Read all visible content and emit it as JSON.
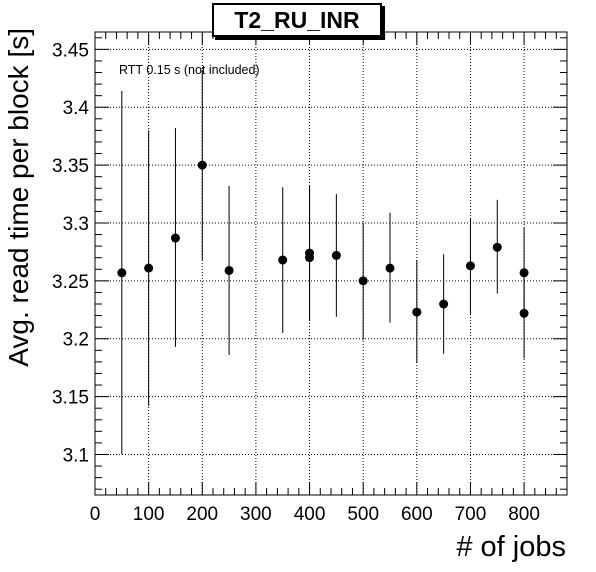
{
  "chart_data": {
    "type": "scatter",
    "title": "T2_RU_INR",
    "xlabel": "# of jobs",
    "ylabel": "Avg. read time per block [s]",
    "annotation": "RTT 0.15 s (not included)",
    "xlim": [
      0,
      880
    ],
    "ylim": [
      3.065,
      3.465
    ],
    "xticks": [
      0,
      100,
      200,
      300,
      400,
      500,
      600,
      700,
      800
    ],
    "yticks": [
      3.1,
      3.15,
      3.2,
      3.25,
      3.3,
      3.35,
      3.4,
      3.45
    ],
    "ytick_labels": [
      "3.1",
      "3.15",
      "3.2",
      "3.25",
      "3.3",
      "3.35",
      "3.4",
      "3.45"
    ],
    "grid": true,
    "points": [
      {
        "x": 50,
        "y": 3.257,
        "ylo": 3.1,
        "yhi": 3.414
      },
      {
        "x": 100,
        "y": 3.261,
        "ylo": 3.142,
        "yhi": 3.38
      },
      {
        "x": 150,
        "y": 3.287,
        "ylo": 3.193,
        "yhi": 3.382
      },
      {
        "x": 200,
        "y": 3.35,
        "ylo": 3.268,
        "yhi": 3.432
      },
      {
        "x": 250,
        "y": 3.259,
        "ylo": 3.186,
        "yhi": 3.332
      },
      {
        "x": 350,
        "y": 3.268,
        "ylo": 3.205,
        "yhi": 3.331
      },
      {
        "x": 400,
        "y": 3.274,
        "ylo": 3.216,
        "yhi": 3.332
      },
      {
        "x": 400,
        "y": 3.27,
        "ylo": 3.216,
        "yhi": 3.332
      },
      {
        "x": 450,
        "y": 3.272,
        "ylo": 3.219,
        "yhi": 3.325
      },
      {
        "x": 500,
        "y": 3.25,
        "ylo": 3.199,
        "yhi": 3.3
      },
      {
        "x": 550,
        "y": 3.261,
        "ylo": 3.214,
        "yhi": 3.309
      },
      {
        "x": 600,
        "y": 3.223,
        "ylo": 3.179,
        "yhi": 3.268
      },
      {
        "x": 650,
        "y": 3.23,
        "ylo": 3.187,
        "yhi": 3.273
      },
      {
        "x": 700,
        "y": 3.263,
        "ylo": 3.221,
        "yhi": 3.304
      },
      {
        "x": 750,
        "y": 3.279,
        "ylo": 3.239,
        "yhi": 3.32
      },
      {
        "x": 800,
        "y": 3.257,
        "ylo": 3.218,
        "yhi": 3.296
      },
      {
        "x": 800,
        "y": 3.222,
        "ylo": 3.183,
        "yhi": 3.26
      }
    ]
  }
}
